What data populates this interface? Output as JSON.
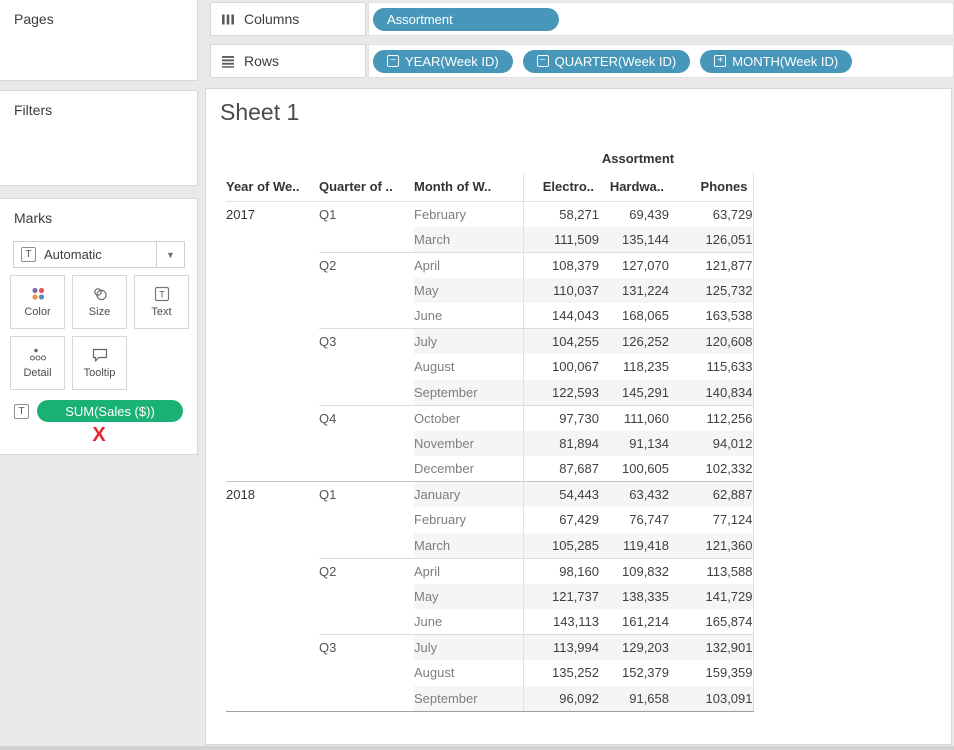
{
  "colors": {
    "pill_teal": "#4697ba",
    "pill_green": "#19b274",
    "red_x": "#e8252d",
    "chrome_bg": "#e9e9e9",
    "band_gray": "#f5f5f5"
  },
  "icons": {
    "text_mark_glyph": "T",
    "dropdown_arrow": "▼",
    "collapse_glyph": "−",
    "expand_glyph": "+"
  },
  "sidebar": {
    "pages_label": "Pages",
    "filters_label": "Filters",
    "marks": {
      "label": "Marks",
      "mark_type": "Automatic",
      "buttons": [
        {
          "name": "color",
          "label": "Color"
        },
        {
          "name": "size",
          "label": "Size"
        },
        {
          "name": "text",
          "label": "Text"
        },
        {
          "name": "detail",
          "label": "Detail"
        },
        {
          "name": "tooltip",
          "label": "Tooltip"
        }
      ],
      "field_label": "SUM(Sales ($))",
      "x_annotation": "X"
    }
  },
  "shelves": {
    "columns": {
      "label": "Columns",
      "pills": [
        {
          "label": "Assortment",
          "icon": "none"
        }
      ]
    },
    "rows": {
      "label": "Rows",
      "pills": [
        {
          "label": "YEAR(Week ID)",
          "icon": "collapse"
        },
        {
          "label": "QUARTER(Week ID)",
          "icon": "collapse"
        },
        {
          "label": "MONTH(Week ID)",
          "icon": "expand"
        }
      ]
    }
  },
  "sheet": {
    "title": "Sheet 1",
    "column_field": "Assortment",
    "table": {
      "headers": [
        {
          "label": "Year of We..",
          "type": "dim"
        },
        {
          "label": "Quarter of ..",
          "type": "dim"
        },
        {
          "label": "Month of W..",
          "type": "dim"
        },
        {
          "label": "Electro..",
          "type": "meas"
        },
        {
          "label": "Hardwa..",
          "type": "meas"
        },
        {
          "label": "Phones",
          "type": "meas"
        }
      ],
      "years": [
        {
          "year": "2017",
          "quarters": [
            {
              "label": "Q1",
              "months": [
                {
                  "month": "February",
                  "values": [
                    "58,271",
                    "69,439",
                    "63,729"
                  ]
                },
                {
                  "month": "March",
                  "values": [
                    "111,509",
                    "135,144",
                    "126,051"
                  ]
                }
              ]
            },
            {
              "label": "Q2",
              "months": [
                {
                  "month": "April",
                  "values": [
                    "108,379",
                    "127,070",
                    "121,877"
                  ]
                },
                {
                  "month": "May",
                  "values": [
                    "110,037",
                    "131,224",
                    "125,732"
                  ]
                },
                {
                  "month": "June",
                  "values": [
                    "144,043",
                    "168,065",
                    "163,538"
                  ]
                }
              ]
            },
            {
              "label": "Q3",
              "months": [
                {
                  "month": "July",
                  "values": [
                    "104,255",
                    "126,252",
                    "120,608"
                  ]
                },
                {
                  "month": "August",
                  "values": [
                    "100,067",
                    "118,235",
                    "115,633"
                  ]
                },
                {
                  "month": "September",
                  "values": [
                    "122,593",
                    "145,291",
                    "140,834"
                  ]
                }
              ]
            },
            {
              "label": "Q4",
              "months": [
                {
                  "month": "October",
                  "values": [
                    "97,730",
                    "111,060",
                    "112,256"
                  ]
                },
                {
                  "month": "November",
                  "values": [
                    "81,894",
                    "91,134",
                    "94,012"
                  ]
                },
                {
                  "month": "December",
                  "values": [
                    "87,687",
                    "100,605",
                    "102,332"
                  ]
                }
              ]
            }
          ]
        },
        {
          "year": "2018",
          "quarters": [
            {
              "label": "Q1",
              "months": [
                {
                  "month": "January",
                  "values": [
                    "54,443",
                    "63,432",
                    "62,887"
                  ]
                },
                {
                  "month": "February",
                  "values": [
                    "67,429",
                    "76,747",
                    "77,124"
                  ]
                },
                {
                  "month": "March",
                  "values": [
                    "105,285",
                    "119,418",
                    "121,360"
                  ]
                }
              ]
            },
            {
              "label": "Q2",
              "months": [
                {
                  "month": "April",
                  "values": [
                    "98,160",
                    "109,832",
                    "113,588"
                  ]
                },
                {
                  "month": "May",
                  "values": [
                    "121,737",
                    "138,335",
                    "141,729"
                  ]
                },
                {
                  "month": "June",
                  "values": [
                    "143,113",
                    "161,214",
                    "165,874"
                  ]
                }
              ]
            },
            {
              "label": "Q3",
              "months": [
                {
                  "month": "July",
                  "values": [
                    "113,994",
                    "129,203",
                    "132,901"
                  ]
                },
                {
                  "month": "August",
                  "values": [
                    "135,252",
                    "152,379",
                    "159,359"
                  ]
                },
                {
                  "month": "September",
                  "values": [
                    "96,092",
                    "91,658",
                    "103,091"
                  ]
                }
              ]
            }
          ]
        }
      ]
    }
  }
}
